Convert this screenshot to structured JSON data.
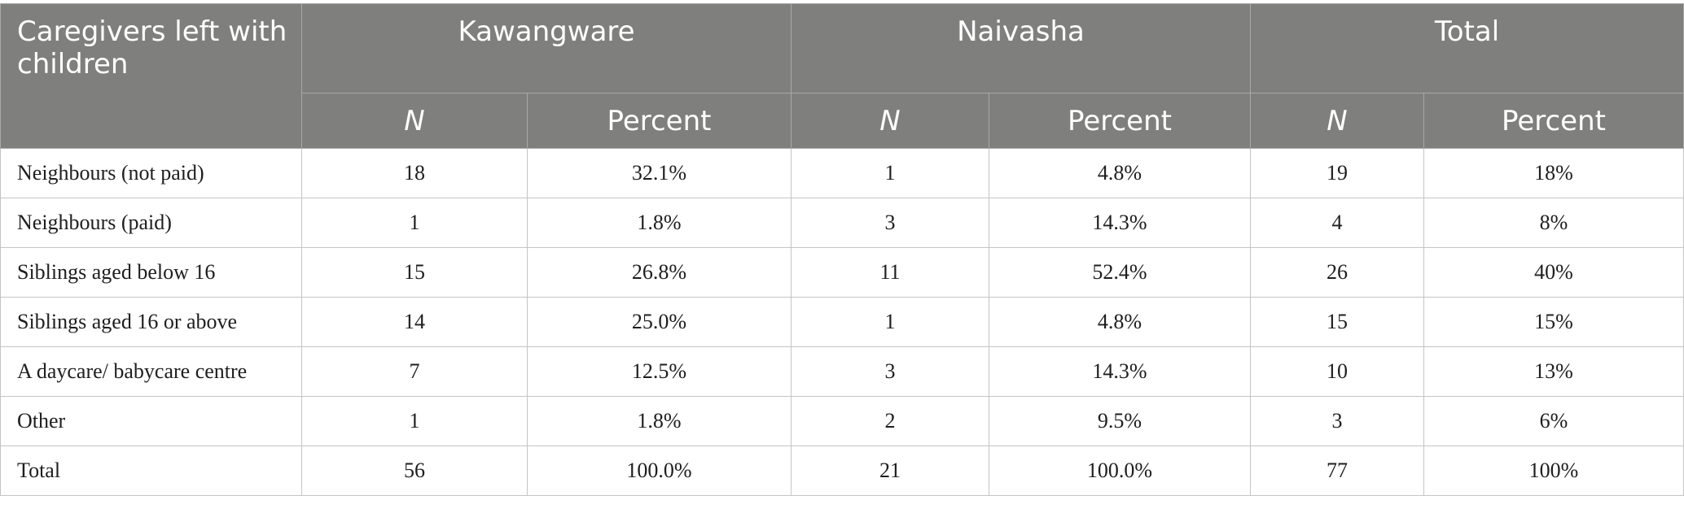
{
  "table": {
    "corner_header": "Caregivers left with children",
    "groups": [
      "Kawangware",
      "Naivasha",
      "Total"
    ],
    "sub_headers": {
      "n": "N",
      "percent": "Percent"
    },
    "rows": [
      {
        "label": "Neighbours (not paid)",
        "cells": [
          "18",
          "32.1%",
          "1",
          "4.8%",
          "19",
          "18%"
        ]
      },
      {
        "label": "Neighbours (paid)",
        "cells": [
          "1",
          "1.8%",
          "3",
          "14.3%",
          "4",
          "8%"
        ]
      },
      {
        "label": "Siblings aged below 16",
        "cells": [
          "15",
          "26.8%",
          "11",
          "52.4%",
          "26",
          "40%"
        ]
      },
      {
        "label": "Siblings aged 16 or above",
        "cells": [
          "14",
          "25.0%",
          "1",
          "4.8%",
          "15",
          "15%"
        ]
      },
      {
        "label": "A daycare/ babycare centre",
        "cells": [
          "7",
          "12.5%",
          "3",
          "14.3%",
          "10",
          "13%"
        ]
      },
      {
        "label": "Other",
        "cells": [
          "1",
          "1.8%",
          "2",
          "9.5%",
          "3",
          "6%"
        ]
      },
      {
        "label": "Total",
        "cells": [
          "56",
          "100.0%",
          "21",
          "100.0%",
          "77",
          "100%"
        ]
      }
    ]
  }
}
